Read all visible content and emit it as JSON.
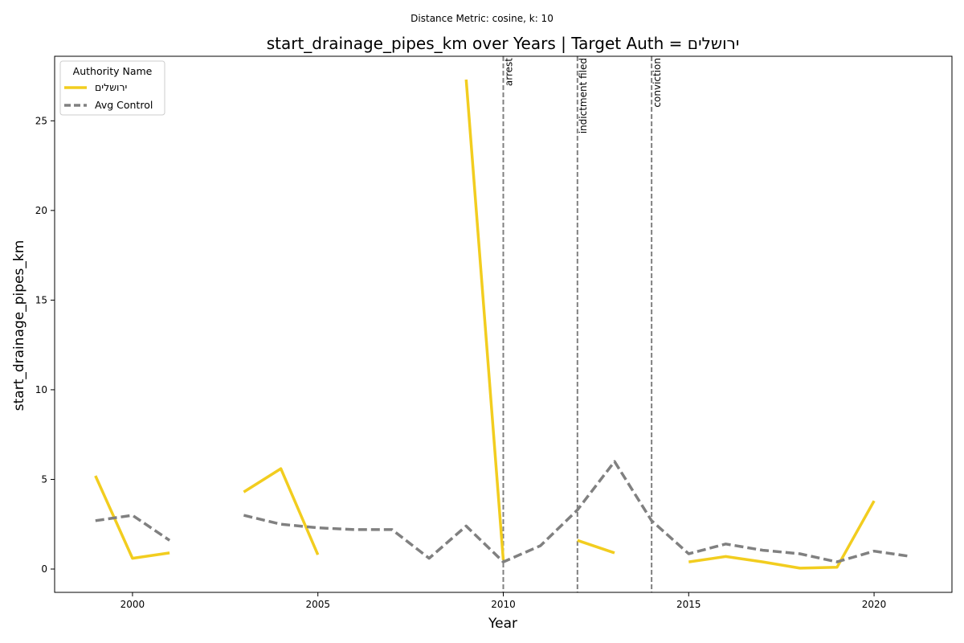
{
  "chart_data": {
    "type": "line",
    "suptitle": "Distance Metric: cosine, k: 10",
    "title": "start_drainage_pipes_km over Years | Target Auth = ירושלים",
    "xlabel": "Year",
    "ylabel": "start_drainage_pipes_km",
    "xlim": [
      1997.9,
      2022.1
    ],
    "ylim": [
      -1.3,
      28.6
    ],
    "x_ticks": [
      2000,
      2005,
      2010,
      2015,
      2020
    ],
    "y_ticks": [
      0,
      5,
      10,
      15,
      20,
      25
    ],
    "grid": false,
    "legend": {
      "title": "Authority Name",
      "placement": "top-left"
    },
    "series": [
      {
        "name": "ירושלים",
        "color": "#f2cd1f",
        "style": "solid",
        "points": [
          [
            1999,
            5.2
          ],
          [
            2000,
            0.6
          ],
          [
            2001,
            0.9
          ],
          [
            2002,
            null
          ],
          [
            2003,
            4.3
          ],
          [
            2004,
            5.6
          ],
          [
            2005,
            0.8
          ],
          [
            2006,
            null
          ],
          [
            2009,
            27.3
          ],
          [
            2010,
            0.5
          ],
          [
            2011,
            null
          ],
          [
            2012,
            1.6
          ],
          [
            2013,
            0.9
          ],
          [
            2014,
            null
          ],
          [
            2015,
            0.4
          ],
          [
            2016,
            0.7
          ],
          [
            2017,
            0.4
          ],
          [
            2018,
            0.05
          ],
          [
            2019,
            0.1
          ],
          [
            2020,
            3.8
          ]
        ]
      },
      {
        "name": "Avg Control",
        "color": "#808080",
        "style": "dashed",
        "points": [
          [
            1999,
            2.7
          ],
          [
            2000,
            3.0
          ],
          [
            2001,
            1.6
          ],
          [
            2002,
            null
          ],
          [
            2003,
            3.0
          ],
          [
            2004,
            2.5
          ],
          [
            2005,
            2.3
          ],
          [
            2006,
            2.2
          ],
          [
            2007,
            2.2
          ],
          [
            2008,
            0.6
          ],
          [
            2009,
            2.4
          ],
          [
            2010,
            0.4
          ],
          [
            2011,
            1.3
          ],
          [
            2012,
            3.3
          ],
          [
            2013,
            6.0
          ],
          [
            2014,
            2.7
          ],
          [
            2015,
            0.85
          ],
          [
            2016,
            1.4
          ],
          [
            2017,
            1.05
          ],
          [
            2018,
            0.85
          ],
          [
            2019,
            0.4
          ],
          [
            2020,
            1.0
          ],
          [
            2021,
            0.7
          ]
        ]
      }
    ],
    "events": [
      {
        "x": 2010,
        "label": "arrest"
      },
      {
        "x": 2012,
        "label": "indictment filed"
      },
      {
        "x": 2014,
        "label": "conviction"
      }
    ]
  }
}
